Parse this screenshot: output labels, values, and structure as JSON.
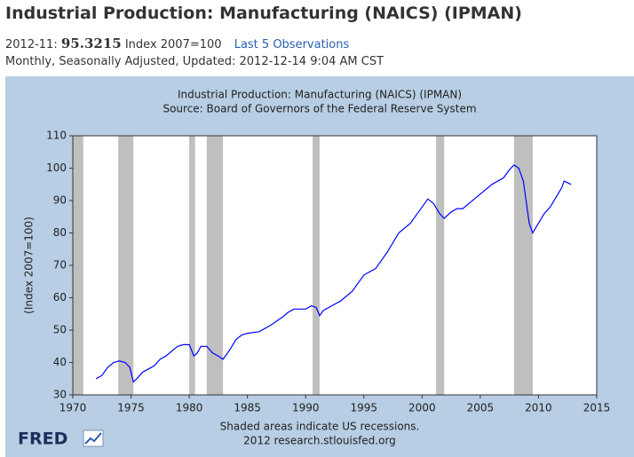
{
  "header": {
    "title": "Industrial Production: Manufacturing (NAICS) (IPMAN)",
    "date": "2012-11:",
    "value": "95.3215",
    "units": "Index 2007=100",
    "link": "Last 5 Observations",
    "details": "Monthly, Seasonally Adjusted, Updated: 2012-12-14 9:04 AM CST"
  },
  "chart_data": {
    "type": "line",
    "title": "Industrial Production: Manufacturing (NAICS) (IPMAN)",
    "subtitle": "Source: Board of Governors of the Federal Reserve System",
    "y_label": "(Index 2007=100)",
    "color": "#0000ff",
    "recession_color": "#bfbfbf",
    "x": [
      1972.0,
      1972.5,
      1973.0,
      1973.5,
      1974.0,
      1974.5,
      1974.9,
      1975.2,
      1975.5,
      1976.0,
      1976.5,
      1977.0,
      1977.5,
      1978.0,
      1978.5,
      1979.0,
      1979.5,
      1980.0,
      1980.4,
      1980.7,
      1981.0,
      1981.5,
      1982.0,
      1982.5,
      1982.9,
      1983.5,
      1984.0,
      1984.5,
      1985.0,
      1986.0,
      1987.0,
      1988.0,
      1988.5,
      1989.0,
      1990.0,
      1990.5,
      1990.9,
      1991.2,
      1991.5,
      1992.0,
      1993.0,
      1994.0,
      1995.0,
      1996.0,
      1997.0,
      1998.0,
      1999.0,
      2000.0,
      2000.5,
      2001.0,
      2001.5,
      2001.9,
      2002.5,
      2003.0,
      2003.5,
      2004.0,
      2005.0,
      2006.0,
      2007.0,
      2007.5,
      2007.9,
      2008.3,
      2008.7,
      2009.2,
      2009.5,
      2010.0,
      2010.5,
      2011.0,
      2011.5,
      2012.0,
      2012.2,
      2012.5,
      2012.8
    ],
    "values": [
      35,
      36,
      38.5,
      40,
      40.5,
      40,
      38.5,
      34,
      35,
      37,
      38,
      39,
      41,
      42,
      43.5,
      45,
      45.5,
      45.5,
      42,
      43,
      45,
      45,
      43,
      42,
      41,
      44,
      47,
      48.5,
      49,
      49.5,
      51.5,
      54,
      55.5,
      56.5,
      56.5,
      57.5,
      57,
      54.5,
      56,
      57,
      59,
      62,
      67,
      69,
      74,
      80,
      83,
      88,
      90.5,
      89,
      86,
      84.5,
      86.5,
      87.5,
      87.5,
      89,
      92,
      95,
      97,
      99.5,
      101,
      100,
      96,
      83,
      80,
      83,
      86,
      88,
      91,
      94,
      96,
      95.5,
      95
    ],
    "recessions": [
      {
        "start": 1970.0,
        "end": 1970.9
      },
      {
        "start": 1973.9,
        "end": 1975.2
      },
      {
        "start": 1980.0,
        "end": 1980.5
      },
      {
        "start": 1981.5,
        "end": 1982.9
      },
      {
        "start": 1990.6,
        "end": 1991.2
      },
      {
        "start": 2001.2,
        "end": 2001.9
      },
      {
        "start": 2007.9,
        "end": 2009.5
      }
    ],
    "xlim": [
      1970,
      2015
    ],
    "xticks": [
      1970,
      1975,
      1980,
      1985,
      1990,
      1995,
      2000,
      2005,
      2010,
      2015
    ],
    "ylim": [
      30,
      110
    ],
    "yticks": [
      30,
      40,
      50,
      60,
      70,
      80,
      90,
      100,
      110
    ],
    "note": "Shaded areas indicate US recessions.",
    "source": "2012 research.stlouisfed.org",
    "logo": "FRED"
  }
}
